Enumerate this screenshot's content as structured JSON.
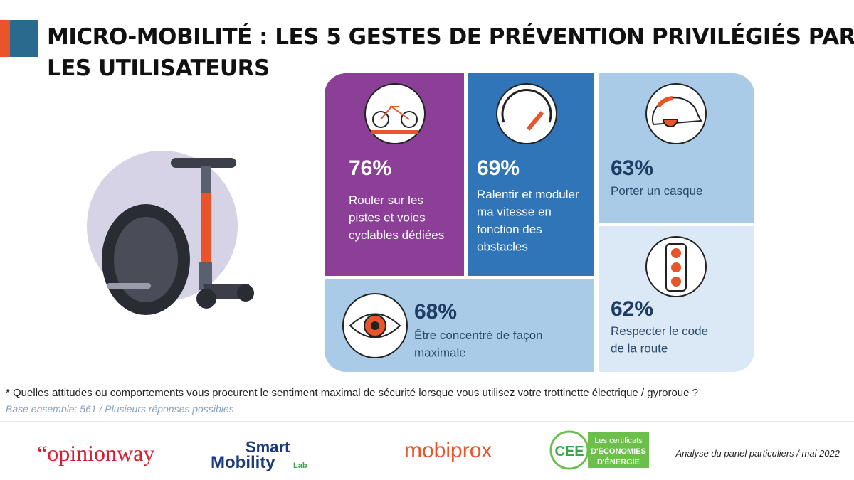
{
  "header": {
    "title_lines": [
      "MICRO-MOBILITÉ : LES 5 GESTES DE PRÉVENTION PRIVILÉGIÉS PAR",
      "LES UTILISATEURS"
    ]
  },
  "tiles": [
    {
      "percent": "76%",
      "label_lines": [
        "Rouler sur les",
        "pistes et voies",
        "cyclables dédiées"
      ]
    },
    {
      "percent": "69%",
      "label_lines": [
        "Ralentir et moduler",
        "ma vitesse en",
        "fonction des",
        "obstacles"
      ]
    },
    {
      "percent": "63%",
      "label_lines": [
        "Porter un casque"
      ]
    },
    {
      "percent": "68%",
      "label_lines": [
        "Être concentré de façon",
        "maximale"
      ]
    },
    {
      "percent": "62%",
      "label_lines": [
        "Respecter le code",
        "de la route"
      ]
    }
  ],
  "footnote": {
    "question": "* Quelles attitudes ou comportements vous procurent le sentiment maximal de sécurité lorsque vous utilisez votre trottinette électrique / gyroroue ?",
    "base": "Base ensemble: 561 / Plusieurs réponses possibles"
  },
  "logos": {
    "opinionway": "“opinionway",
    "smart": "Smart",
    "mobility": "Mobility",
    "lab": "Lab",
    "mobiprox": "mobiprox",
    "cee": "CEE",
    "cee_lines": [
      "Les certificats",
      "D'ÉCONOMIES",
      "D'ÉNERGIE"
    ]
  },
  "source": "Analyse du panel particuliers / mai 2022"
}
